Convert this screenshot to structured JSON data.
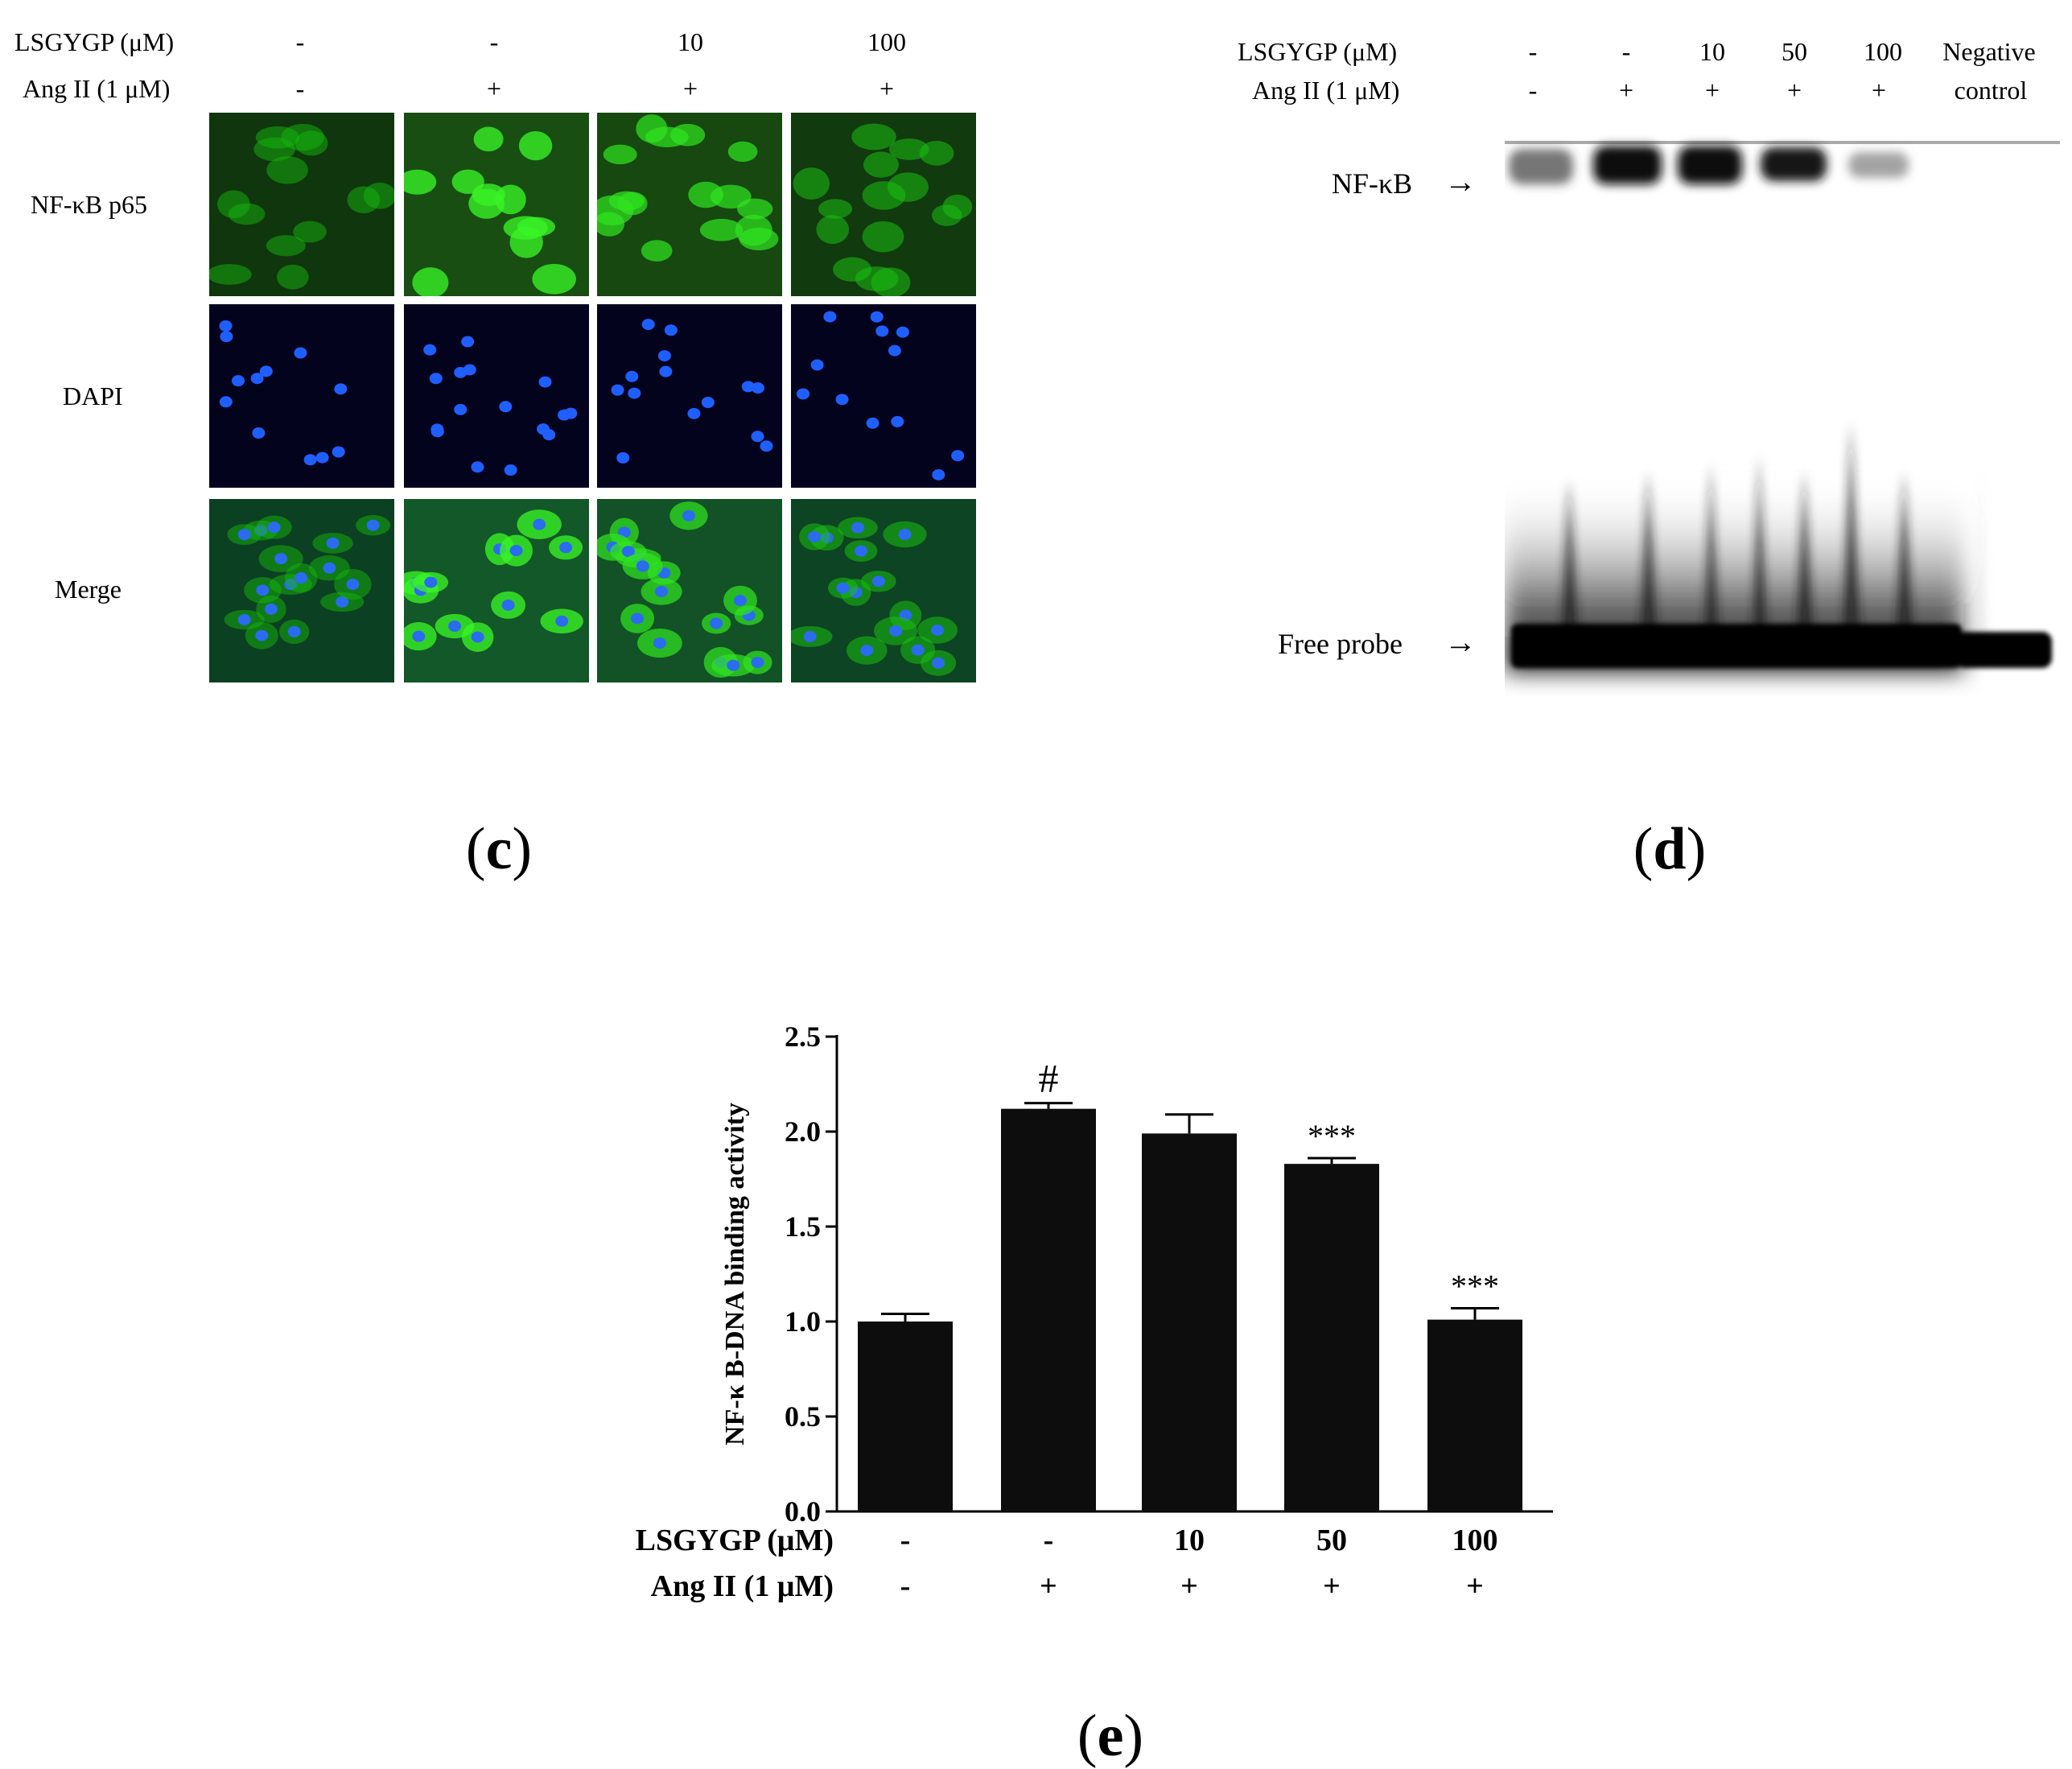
{
  "panel_c": {
    "label": "c",
    "lsgygp_label": "LSGYGP (μM)",
    "angii_label": "Ang II (1 μM)",
    "lsgygp_values": [
      "-",
      "-",
      "10",
      "100"
    ],
    "angii_values": [
      "-",
      "+",
      "+",
      "+"
    ],
    "row_labels": [
      "NF-κB p65",
      "DAPI",
      "Merge"
    ]
  },
  "panel_d": {
    "label": "d",
    "lsgygp_label": "LSGYGP (μM)",
    "angii_label": "Ang II (1 μM)",
    "lsgygp_values": [
      "-",
      "-",
      "10",
      "50",
      "100",
      "Negative"
    ],
    "angii_values": [
      "-",
      "+",
      "+",
      "+",
      "+",
      "control"
    ],
    "band_labels": {
      "nfkb": "NF-κB",
      "free_probe": "Free probe"
    },
    "arrow": "→"
  },
  "chart_data": {
    "type": "bar",
    "panel_label": "e",
    "ylabel": "NF-κ B-DNA binding activity",
    "ylim": [
      0,
      2.5
    ],
    "yticks": [
      "0.0",
      "0.5",
      "1.0",
      "1.5",
      "2.0",
      "2.5"
    ],
    "values": [
      1.0,
      2.12,
      1.99,
      1.83,
      1.01
    ],
    "errors": [
      0.04,
      0.03,
      0.1,
      0.03,
      0.06
    ],
    "annotations": [
      "",
      "#",
      "",
      "***",
      "***"
    ],
    "bar_color": "#0d0d0d",
    "row_labels": {
      "lsgygp": "LSGYGP (μM)",
      "angii": "Ang II (1 μM)"
    },
    "lsgygp_values": [
      "-",
      "-",
      "10",
      "50",
      "100"
    ],
    "angii_values": [
      "-",
      "+",
      "+",
      "+",
      "+"
    ]
  }
}
